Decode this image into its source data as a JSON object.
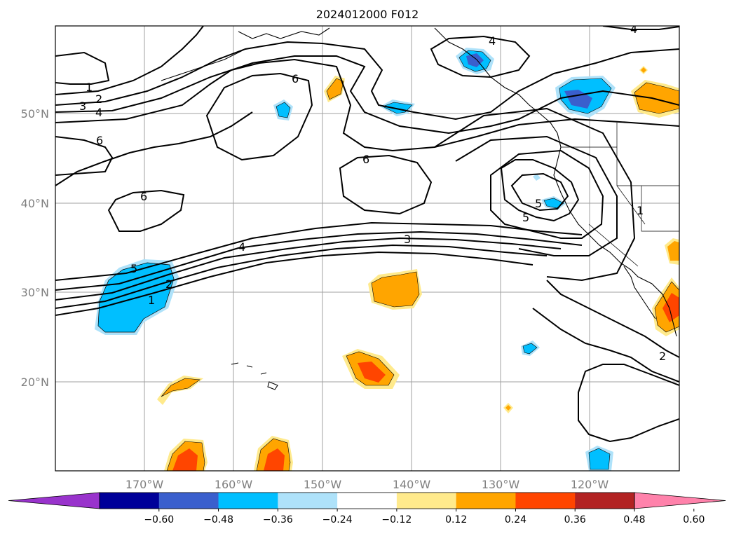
{
  "title": "2024012000 F012",
  "lat_labels": [
    "50°N",
    "40°N",
    "30°N",
    "20°N"
  ],
  "lon_labels": [
    "170°W",
    "160°W",
    "150°W",
    "140°W",
    "130°W",
    "120°W"
  ],
  "contour_labels": [
    "1",
    "2",
    "3",
    "4",
    "6",
    "6",
    "6",
    "4",
    "6",
    "5",
    "4",
    "3",
    "5",
    "2",
    "1",
    "4",
    "1",
    "2"
  ],
  "colorbar": {
    "ticks": [
      "−0.60",
      "−0.48",
      "−0.36",
      "−0.24",
      "−0.12",
      "0.12",
      "0.24",
      "0.36",
      "0.48",
      "0.60"
    ],
    "colors": [
      "#9933cc",
      "#000099",
      "#3a5fcd",
      "#00bfff",
      "#aee2fa",
      "#ffffff",
      "#ffea8c",
      "#ffa500",
      "#ff4500",
      "#b22222",
      "#ff82ab"
    ]
  },
  "anomaly_colors": {
    "neg_light": "#aee2fa",
    "neg_mid": "#00bfff",
    "neg_strong": "#3a5fcd",
    "pos_light": "#ffea8c",
    "pos_mid": "#ffa500",
    "pos_strong": "#ff4500"
  }
}
